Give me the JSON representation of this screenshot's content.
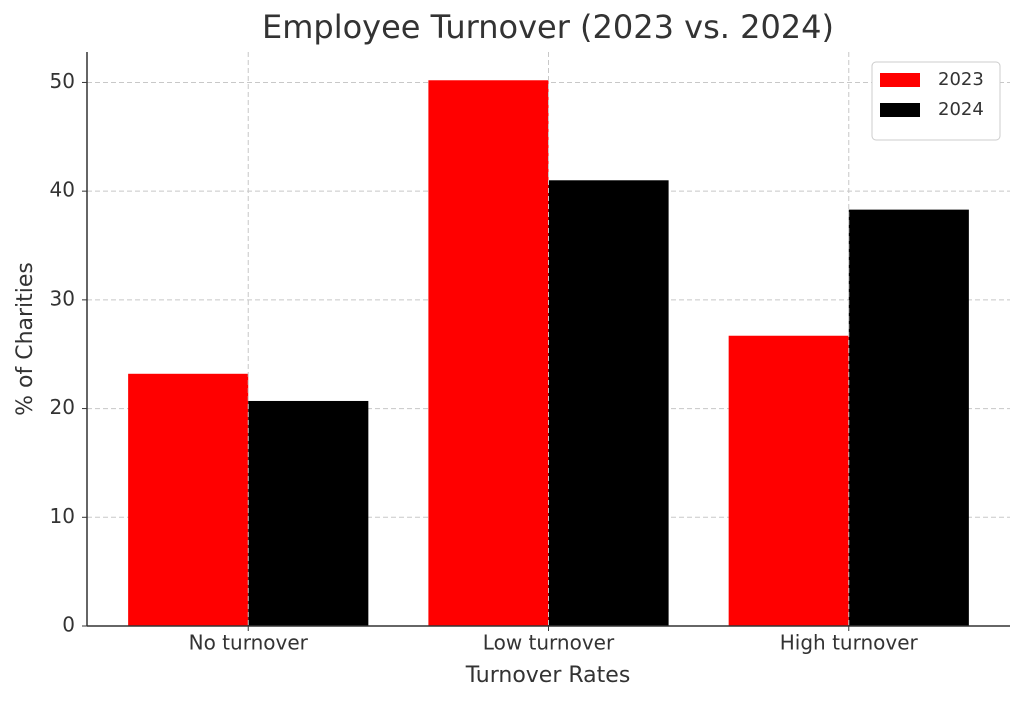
{
  "chart_data": {
    "type": "bar",
    "title": "Employee Turnover (2023 vs. 2024)",
    "x_label": "Turnover Rates",
    "y_label": "% of Charities",
    "categories": [
      "No turnover",
      "Low turnover",
      "High turnover"
    ],
    "series": [
      {
        "name": "2023",
        "color": "#ff0000",
        "values": [
          23.2,
          50.2,
          26.7
        ]
      },
      {
        "name": "2024",
        "color": "#000000",
        "values": [
          20.7,
          41.0,
          38.3
        ]
      }
    ],
    "ylim": [
      0,
      52.8
    ],
    "yticks": [
      0,
      10,
      20,
      30,
      40,
      50
    ],
    "grid": true,
    "legend": "upper right"
  }
}
